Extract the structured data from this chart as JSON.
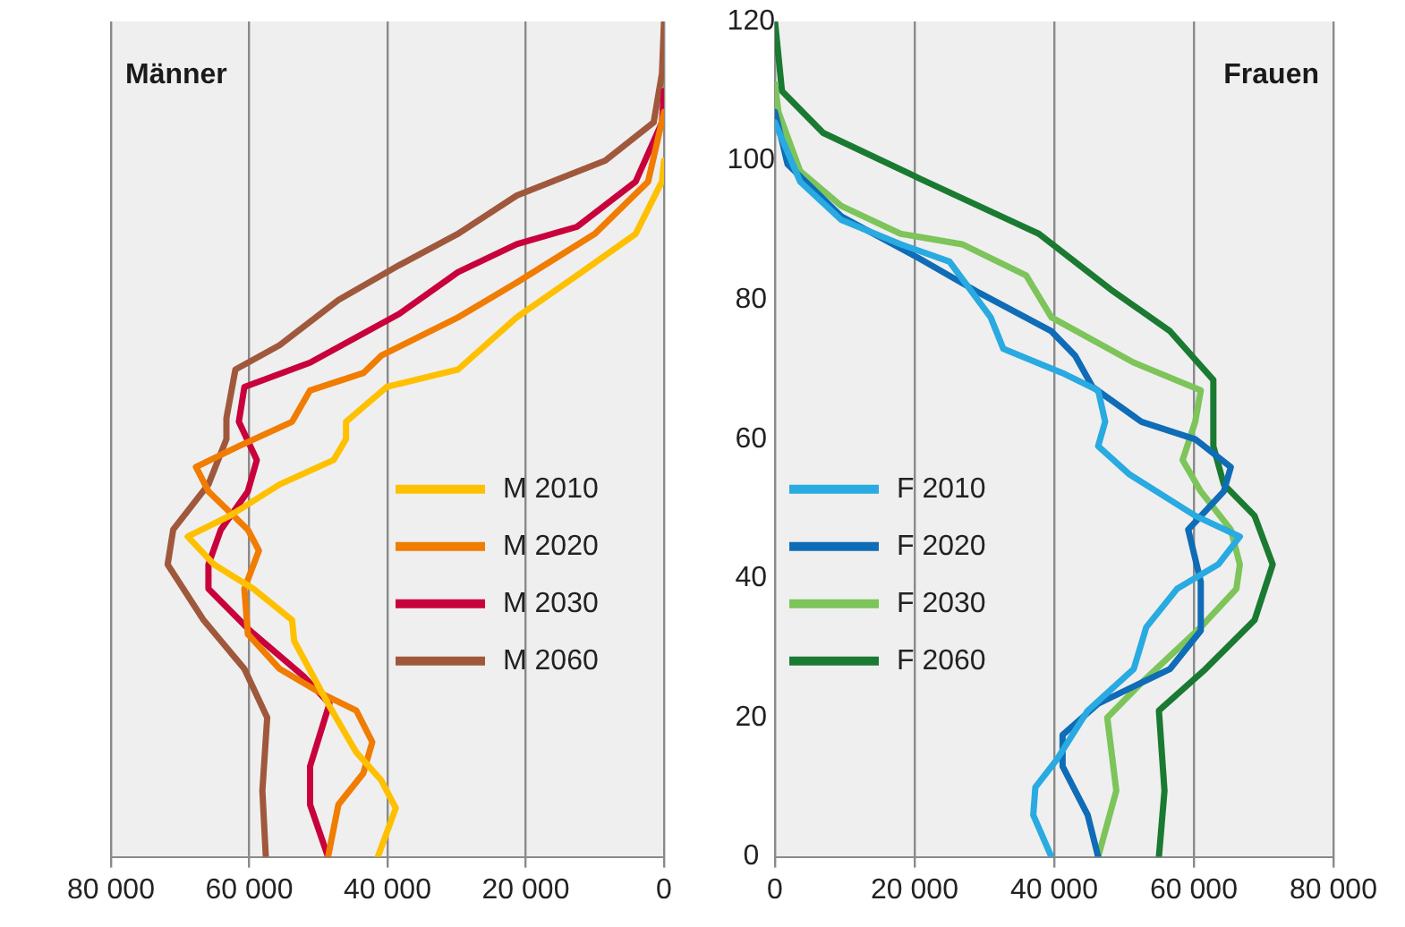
{
  "chart_data": [
    {
      "type": "line",
      "title": "Männer",
      "xlim": [
        80000,
        0
      ],
      "xticks": [
        {
          "value": 80000,
          "label": "80 000"
        },
        {
          "value": 60000,
          "label": "60 000"
        },
        {
          "value": 40000,
          "label": "40 000"
        },
        {
          "value": 20000,
          "label": "20 000"
        },
        {
          "value": 0,
          "label": "0"
        }
      ],
      "ylim": [
        0,
        120
      ],
      "tick_labels": "x",
      "grid": "x",
      "legend": "right",
      "series": [
        {
          "name": "M 2010",
          "color": "#ffc000",
          "x": [
            41400,
            38800,
            40900,
            44500,
            48600,
            53500,
            53800,
            59400,
            65100,
            68900,
            62800,
            55600,
            47800,
            46000,
            46000,
            40100,
            29800,
            21300,
            12600,
            4100,
            300,
            0
          ],
          "values": [
            0,
            7,
            11,
            15,
            22,
            31,
            34,
            38.5,
            42,
            46,
            49,
            53.5,
            57,
            60,
            62.5,
            67.5,
            70,
            77.5,
            83.5,
            89.5,
            97,
            100
          ]
        },
        {
          "name": "M 2020",
          "color": "#f07c00",
          "x": [
            48600,
            47100,
            43500,
            42200,
            44500,
            49600,
            55600,
            60200,
            60700,
            58600,
            60200,
            65900,
            67700,
            61500,
            53800,
            51200,
            43500,
            40900,
            29800,
            21300,
            10000,
            2300,
            0
          ],
          "values": [
            0,
            7.5,
            12,
            16.5,
            21,
            23.5,
            27,
            32,
            38.5,
            44,
            47,
            52.5,
            56,
            59,
            62.5,
            67,
            69.5,
            72,
            77.5,
            82.5,
            89.5,
            97,
            107
          ]
        },
        {
          "name": "M 2030",
          "color": "#c8003c",
          "x": [
            48600,
            51200,
            51200,
            48400,
            52200,
            59900,
            65900,
            65900,
            64100,
            60200,
            58900,
            61500,
            60700,
            51200,
            38300,
            29800,
            21300,
            12600,
            4100,
            300,
            0
          ],
          "values": [
            0,
            7.5,
            13,
            22,
            26,
            32.5,
            38.5,
            42,
            47,
            52.5,
            57,
            62.5,
            67.5,
            71,
            78,
            84,
            88,
            90.5,
            97,
            105.5,
            110
          ]
        },
        {
          "name": "M 2060",
          "color": "#a0583c",
          "x": [
            57600,
            58100,
            57400,
            60700,
            66600,
            71800,
            71000,
            65900,
            63300,
            63300,
            62000,
            55600,
            47100,
            38300,
            29800,
            21300,
            8500,
            1500,
            300,
            0
          ],
          "values": [
            0,
            9.5,
            20,
            27,
            34,
            42,
            47,
            53.5,
            60,
            63,
            70,
            73.5,
            80,
            85,
            89.5,
            95,
            100,
            105.5,
            112.5,
            120
          ]
        }
      ]
    },
    {
      "type": "line",
      "title": "Frauen",
      "xlim": [
        0,
        80000
      ],
      "xticks": [
        0,
        {
          "value": 20000,
          "label": "20 000"
        },
        {
          "value": 40000,
          "label": "40 000"
        },
        {
          "value": 60000,
          "label": "60 000"
        },
        {
          "value": 80000,
          "label": "80 000"
        }
      ],
      "ylim": [
        0,
        120
      ],
      "yticks": [
        0,
        20,
        40,
        60,
        80,
        100,
        120
      ],
      "grid": "x",
      "legend": "left",
      "series": [
        {
          "name": "F 2010",
          "color": "#29aae1",
          "x": [
            39600,
            37000,
            37300,
            40400,
            44800,
            51400,
            53200,
            57600,
            63500,
            66600,
            60200,
            50700,
            46300,
            47300,
            46300,
            41200,
            32700,
            30900,
            25000,
            18000,
            9500,
            3600,
            0
          ],
          "values": [
            0,
            6,
            10,
            14,
            21,
            27,
            33,
            38.5,
            42,
            46,
            49,
            55,
            59,
            62.5,
            67,
            69.5,
            73,
            77.5,
            85.5,
            88,
            91.5,
            97,
            105.5
          ]
        },
        {
          "name": "F 2020",
          "color": "#0f6cb6",
          "x": [
            46300,
            44800,
            41200,
            41200,
            46300,
            56600,
            61000,
            61000,
            59200,
            64300,
            65300,
            60200,
            52500,
            45500,
            43000,
            39600,
            29300,
            20600,
            9500,
            1800,
            0
          ],
          "values": [
            0,
            6,
            13,
            17.5,
            22,
            27,
            32.5,
            39.5,
            47,
            52.5,
            56,
            60,
            62.5,
            67.5,
            72,
            75.5,
            81,
            86,
            92,
            99.5,
            107
          ]
        },
        {
          "name": "F 2030",
          "color": "#7dc45a",
          "x": [
            46300,
            48900,
            47600,
            52500,
            61000,
            66100,
            66600,
            65300,
            61000,
            58400,
            60200,
            61000,
            51400,
            39600,
            36000,
            26800,
            18000,
            9500,
            3600,
            500,
            0
          ],
          "values": [
            0,
            9.5,
            20,
            25,
            33,
            38.5,
            42,
            47,
            52.5,
            57,
            62.5,
            67,
            71,
            77.5,
            83.5,
            88,
            89.5,
            93.5,
            98.5,
            107,
            111
          ]
        },
        {
          "name": "F 2060",
          "color": "#1a7a32",
          "x": [
            55000,
            55800,
            55000,
            61700,
            68700,
            71300,
            68700,
            64300,
            62800,
            62800,
            56600,
            48100,
            37800,
            20600,
            6900,
            1000,
            0
          ],
          "values": [
            0,
            9.5,
            21,
            27,
            34,
            42,
            49,
            53.5,
            59,
            68.5,
            75.5,
            81.5,
            89.5,
            97.5,
            104,
            110,
            120
          ]
        }
      ]
    }
  ]
}
